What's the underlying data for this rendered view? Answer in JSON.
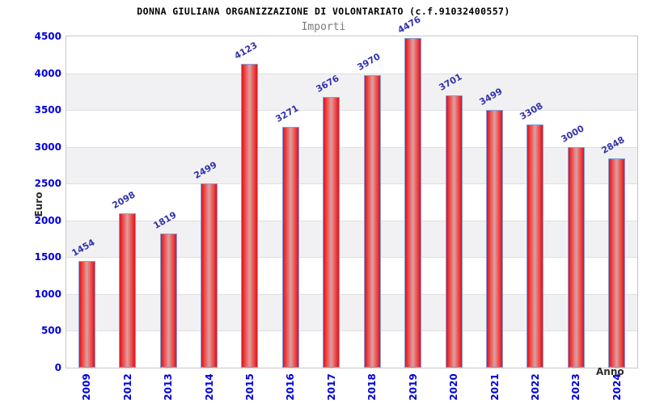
{
  "chart_data": {
    "type": "bar",
    "title": "DONNA GIULIANA ORGANIZZAZIONE DI VOLONTARIATO (c.f.91032400557)",
    "subtitle": "Importi",
    "xlabel": "Anno",
    "ylabel": "Euro",
    "categories": [
      "2009",
      "2012",
      "2013",
      "2014",
      "2015",
      "2016",
      "2017",
      "2018",
      "2019",
      "2020",
      "2021",
      "2022",
      "2023",
      "2024"
    ],
    "values": [
      1454,
      2098,
      1819,
      2499,
      4123,
      3271,
      3676,
      3970,
      4476,
      3701,
      3499,
      3308,
      3000,
      2848
    ],
    "ylim": [
      0,
      4500
    ],
    "ytick_step": 500,
    "grid": "horizontal bands every 500, alternating white and light gray",
    "legend": "none",
    "value_labels": "rotated -30deg above each bar",
    "colors": {
      "bar_edge": "#dd1318",
      "bar_mid": "#ef5b5b",
      "bar_center": "#d9a1a1",
      "bar_border": "#7da2e0",
      "tick_label": "#0000dd",
      "value_label": "#3333aa",
      "title": "#000000",
      "subtitle": "#7a7a7a",
      "axis_title": "#2b2b2b",
      "band": "#f1f1f3",
      "grid_line": "#dfdfe2",
      "plot_border": "#c6c6c6",
      "background": "#ffffff"
    }
  }
}
